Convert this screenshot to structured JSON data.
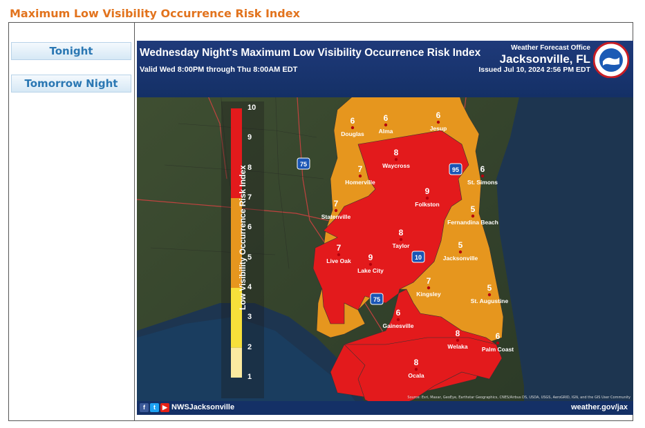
{
  "page": {
    "title": "Maximum Low Visibility Occurrence Risk Index"
  },
  "sidebar": {
    "buttons": [
      {
        "label": "Tonight"
      },
      {
        "label": "Tomorrow Night"
      }
    ]
  },
  "map": {
    "title": "Wednesday Night's Maximum Low Visibility Occurrence Risk Index",
    "validity": "Valid Wed 8:00PM through Thu 8:00AM EDT",
    "office_label": "Weather Forecast Office",
    "office_city": "Jacksonville, FL",
    "issued": "Issued Jul 10, 2024 2:56 PM EDT",
    "logo_text": "NATIONAL WEATHER SERVICE",
    "legend": {
      "title": "Low Visibility Occurrence Risk Index",
      "ticks": [
        "10",
        "9",
        "8",
        "7",
        "6",
        "5",
        "4",
        "3",
        "2",
        "1"
      ],
      "bands": [
        {
          "from": 7,
          "to": 10,
          "color": "#e31a1c"
        },
        {
          "from": 4,
          "to": 7,
          "color": "#e6961e"
        },
        {
          "from": 2,
          "to": 4,
          "color": "#f7e03a"
        },
        {
          "from": 1,
          "to": 2,
          "color": "#fbeaa0"
        }
      ]
    },
    "interstates": [
      "75",
      "95",
      "10",
      "75"
    ],
    "cities": [
      {
        "name": "Douglas",
        "value": "6"
      },
      {
        "name": "Alma",
        "value": "6"
      },
      {
        "name": "Jesup",
        "value": "6"
      },
      {
        "name": "Waycross",
        "value": "8"
      },
      {
        "name": "Homerville",
        "value": "7"
      },
      {
        "name": "St. Simons",
        "value": "6"
      },
      {
        "name": "Statenville",
        "value": "7"
      },
      {
        "name": "Folkston",
        "value": "9"
      },
      {
        "name": "Fernandina Beach",
        "value": "5"
      },
      {
        "name": "Taylor",
        "value": "8"
      },
      {
        "name": "Jacksonville",
        "value": "5"
      },
      {
        "name": "Live Oak",
        "value": "7"
      },
      {
        "name": "Lake City",
        "value": "9"
      },
      {
        "name": "Kingsley",
        "value": "7"
      },
      {
        "name": "St. Augustine",
        "value": "5"
      },
      {
        "name": "Gainesville",
        "value": "6"
      },
      {
        "name": "Welaka",
        "value": "8"
      },
      {
        "name": "Palm Coast",
        "value": "6"
      },
      {
        "name": "Ocala",
        "value": "8"
      }
    ],
    "footer": {
      "handle": "NWSJacksonville",
      "site": "weather.gov/jax",
      "attribution": "Source: Esri, Maxar, GeoEye, Earthstar Geographics, CNES/Airbus DS, USDA, USGS, AeroGRID, IGN, and the GIS User Community"
    },
    "colors": {
      "high": "#e31a1c",
      "moderate": "#e6961e",
      "header": "#1f3a7a"
    }
  }
}
